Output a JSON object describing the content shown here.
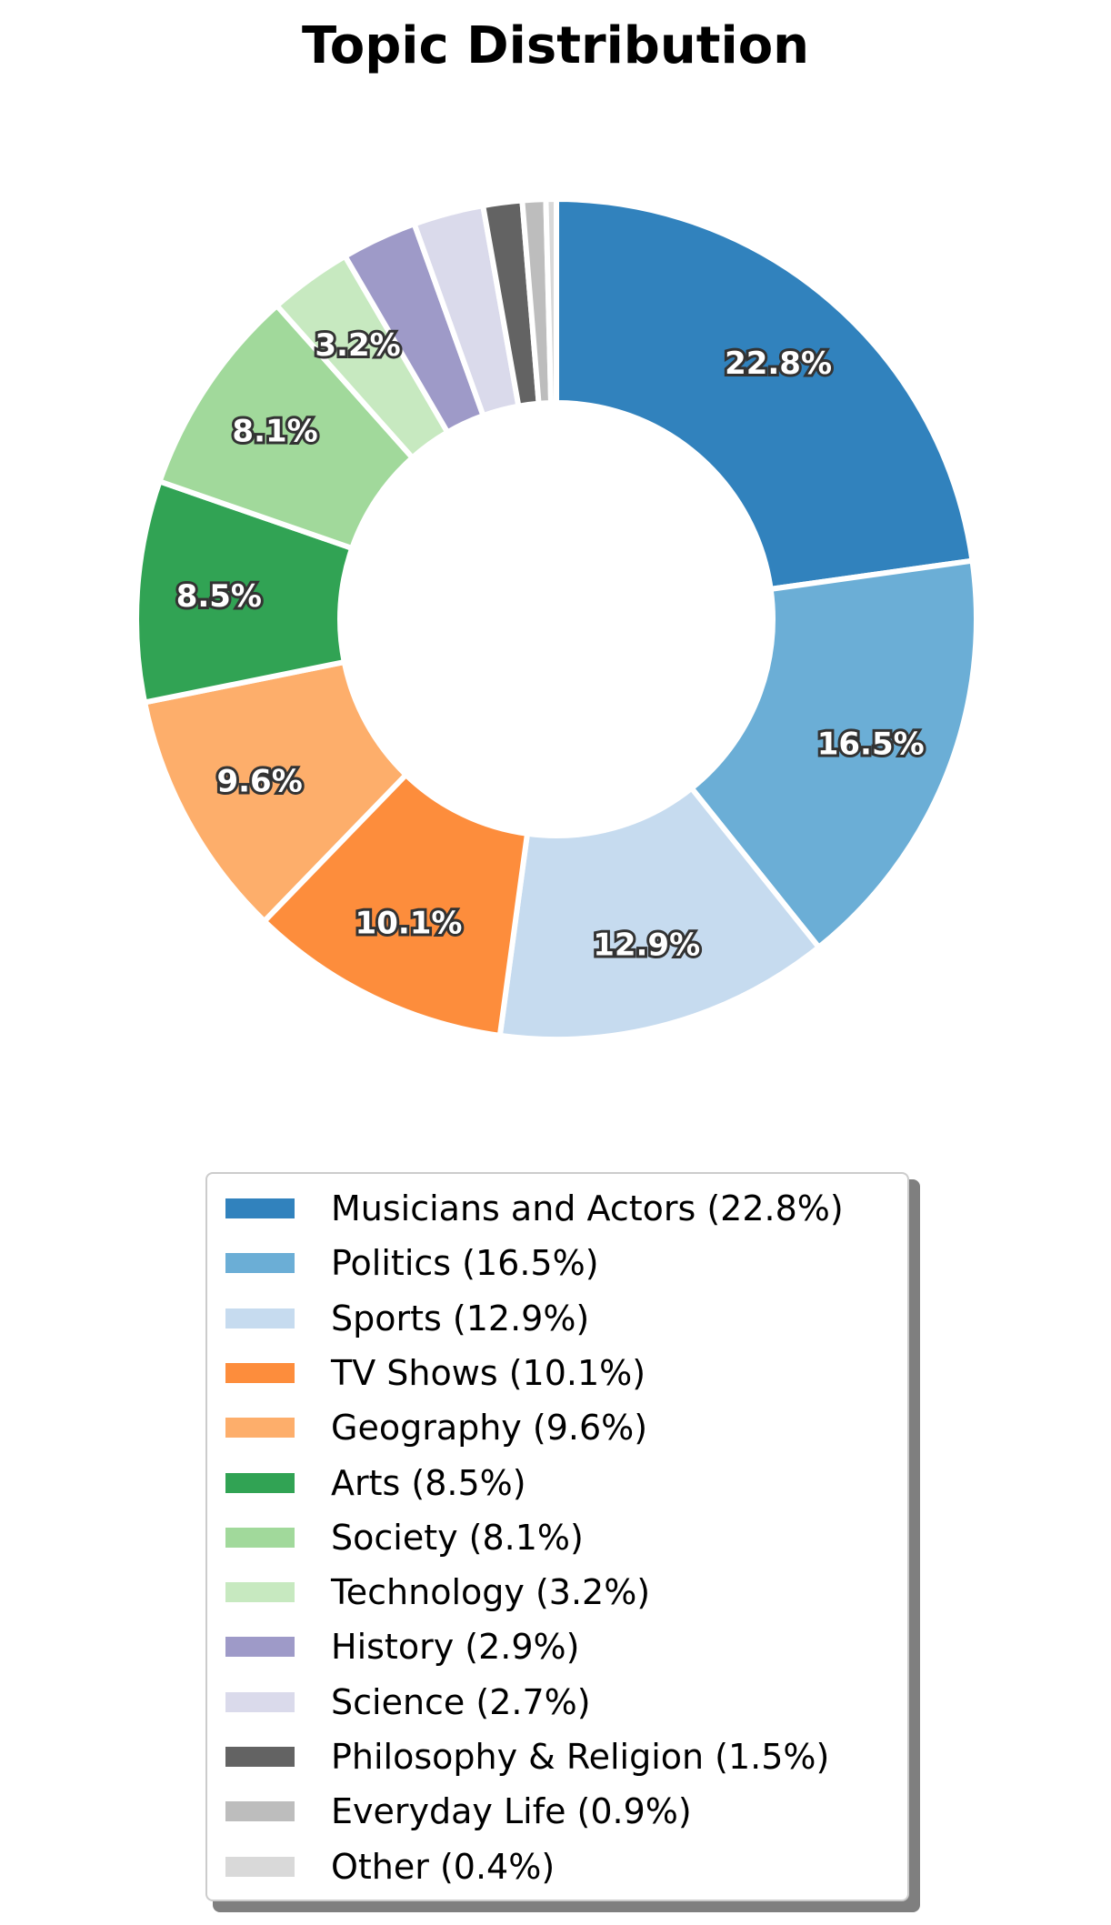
{
  "chart_data": {
    "type": "pie",
    "title": "Topic Distribution",
    "donut": true,
    "legend_position": "bottom",
    "series": [
      {
        "name": "Musicians and Actors",
        "value": 22.8,
        "label": "22.8%",
        "legend": "Musicians and Actors (22.8%)",
        "color": "#3182bd"
      },
      {
        "name": "Politics",
        "value": 16.5,
        "label": "16.5%",
        "legend": "Politics (16.5%)",
        "color": "#6baed6"
      },
      {
        "name": "Sports",
        "value": 12.9,
        "label": "12.9%",
        "legend": "Sports (12.9%)",
        "color": "#c6dbef"
      },
      {
        "name": "TV Shows",
        "value": 10.1,
        "label": "10.1%",
        "legend": "TV Shows (10.1%)",
        "color": "#fd8d3c"
      },
      {
        "name": "Geography",
        "value": 9.6,
        "label": "9.6%",
        "legend": "Geography (9.6%)",
        "color": "#fdae6b"
      },
      {
        "name": "Arts",
        "value": 8.5,
        "label": "8.5%",
        "legend": "Arts (8.5%)",
        "color": "#31a354"
      },
      {
        "name": "Society",
        "value": 8.1,
        "label": "8.1%",
        "legend": "Society (8.1%)",
        "color": "#a1d99b"
      },
      {
        "name": "Technology",
        "value": 3.2,
        "label": "3.2%",
        "legend": "Technology (3.2%)",
        "color": "#c7e9c0"
      },
      {
        "name": "History",
        "value": 2.9,
        "label": "",
        "legend": "History (2.9%)",
        "color": "#9e9ac8"
      },
      {
        "name": "Science",
        "value": 2.7,
        "label": "",
        "legend": "Science (2.7%)",
        "color": "#dadaeb"
      },
      {
        "name": "Philosophy & Religion",
        "value": 1.5,
        "label": "",
        "legend": "Philosophy & Religion (1.5%)",
        "color": "#636363"
      },
      {
        "name": "Everyday Life",
        "value": 0.9,
        "label": "",
        "legend": "Everyday Life (0.9%)",
        "color": "#bdbdbd"
      },
      {
        "name": "Other",
        "value": 0.4,
        "label": "",
        "legend": "Other (0.4%)",
        "color": "#d9d9d9"
      }
    ]
  }
}
